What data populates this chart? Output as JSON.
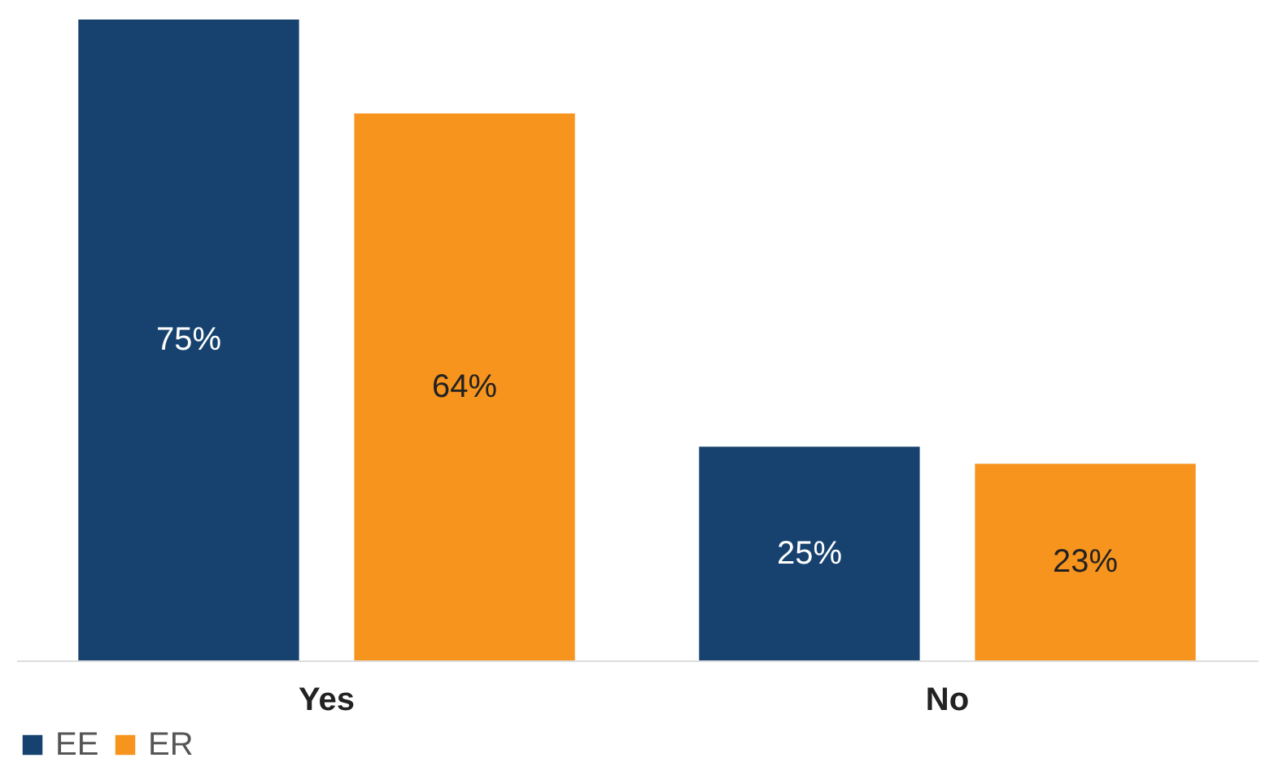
{
  "chart_data": {
    "type": "bar",
    "categories": [
      "Yes",
      "No"
    ],
    "series": [
      {
        "name": "EE",
        "color": "#17426f",
        "values": [
          75,
          25
        ],
        "value_labels": [
          "75%",
          "25%"
        ]
      },
      {
        "name": "ER",
        "color": "#f7941d",
        "values": [
          64,
          23
        ],
        "value_labels": [
          "64%",
          "23%"
        ]
      }
    ],
    "legend": "bottom",
    "grid": false
  }
}
